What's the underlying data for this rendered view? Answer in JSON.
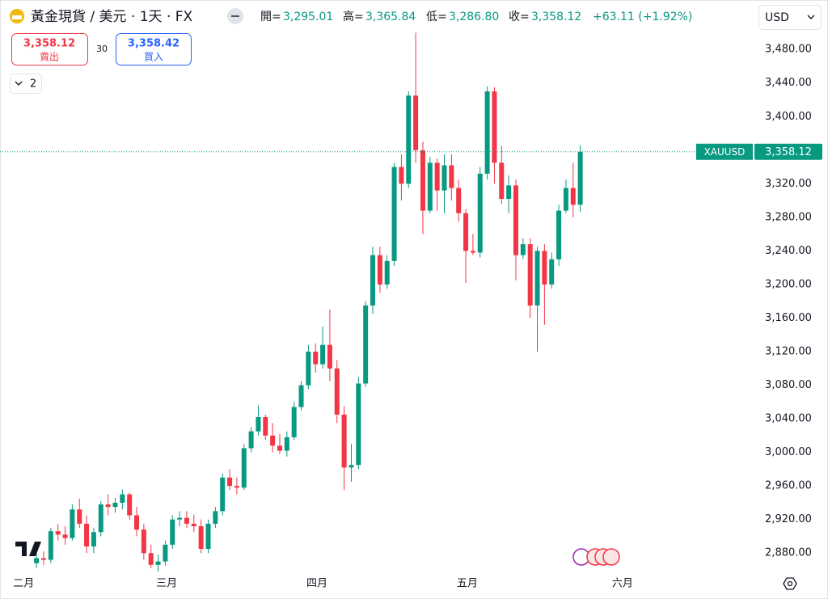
{
  "header": {
    "title": "黃金現貨 / 美元 · 1天 · FX",
    "quote": [
      {
        "label": "開=",
        "value": "3,295.01"
      },
      {
        "label": "高=",
        "value": "3,365.84"
      },
      {
        "label": "低=",
        "value": "3,286.80"
      },
      {
        "label": "收=",
        "value": "3,358.12"
      }
    ],
    "change": "+63.11 (+1.92%)",
    "currency": "USD"
  },
  "trade": {
    "sell_price": "3,358.12",
    "sell_label": "賣出",
    "spread": "30",
    "buy_price": "3,358.42",
    "buy_label": "買入"
  },
  "indicators": {
    "count": "2"
  },
  "chart_data": {
    "type": "candlestick",
    "series": [
      {
        "name": "XAUUSD",
        "up_color": "#089981",
        "down_color": "#f23645",
        "open": [
          2868,
          2874,
          2872,
          2906,
          2902,
          2898,
          2932,
          2915,
          2888,
          2905,
          2938,
          2935,
          2940,
          2950,
          2925,
          2908,
          2880,
          2866,
          2870,
          2890,
          2920,
          2922,
          2915,
          2912,
          2885,
          2915,
          2930,
          2970,
          2960,
          2958,
          3005,
          3025,
          3042,
          3020,
          3008,
          3002,
          3018,
          3054,
          3080,
          3120,
          3105,
          3128,
          3100,
          3045,
          2982,
          2985,
          3082,
          3175,
          3235,
          3200,
          3228,
          3340,
          3320,
          3425,
          3360,
          3288,
          3345,
          3312,
          3342,
          3315,
          3285,
          3240,
          3238,
          3332,
          3430,
          3345,
          3302,
          3318,
          3235,
          3248,
          3175,
          3240,
          3200,
          3230,
          3288,
          3315,
          3295.01
        ],
        "high": [
          2880,
          2882,
          2910,
          2915,
          2912,
          2938,
          2945,
          2925,
          2910,
          2942,
          2950,
          2946,
          2956,
          2952,
          2935,
          2915,
          2890,
          2878,
          2895,
          2925,
          2930,
          2930,
          2926,
          2920,
          2920,
          2935,
          2975,
          2980,
          2970,
          3010,
          3030,
          3056,
          3045,
          3035,
          3022,
          3025,
          3060,
          3085,
          3128,
          3130,
          3150,
          3170,
          3110,
          3055,
          3010,
          3090,
          3180,
          3245,
          3245,
          3235,
          3345,
          3355,
          3430,
          3500,
          3370,
          3352,
          3350,
          3355,
          3355,
          3325,
          3290,
          3260,
          3340,
          3436,
          3435,
          3365,
          3330,
          3325,
          3255,
          3255,
          3245,
          3248,
          3238,
          3295,
          3325,
          3345,
          3365.84
        ],
        "low": [
          2862,
          2866,
          2868,
          2895,
          2890,
          2895,
          2910,
          2880,
          2880,
          2900,
          2925,
          2928,
          2932,
          2920,
          2900,
          2872,
          2862,
          2858,
          2865,
          2885,
          2912,
          2910,
          2905,
          2880,
          2880,
          2910,
          2925,
          2955,
          2950,
          2955,
          3000,
          3020,
          3015,
          3000,
          2998,
          2995,
          3015,
          3050,
          3075,
          3095,
          3100,
          3085,
          3035,
          2955,
          2965,
          2980,
          3078,
          3165,
          3190,
          3195,
          3222,
          3300,
          3315,
          3345,
          3260,
          3285,
          3288,
          3285,
          3300,
          3275,
          3202,
          3235,
          3232,
          3325,
          3320,
          3296,
          3285,
          3205,
          3230,
          3160,
          3120,
          3152,
          3195,
          3222,
          3285,
          3280,
          3286.8
        ],
        "close": [
          2874,
          2872,
          2906,
          2902,
          2898,
          2932,
          2915,
          2888,
          2905,
          2938,
          2935,
          2940,
          2950,
          2925,
          2908,
          2880,
          2866,
          2870,
          2890,
          2920,
          2922,
          2915,
          2912,
          2885,
          2915,
          2930,
          2970,
          2960,
          2958,
          3005,
          3025,
          3042,
          3020,
          3008,
          3002,
          3018,
          3054,
          3080,
          3120,
          3105,
          3128,
          3100,
          3045,
          2982,
          2985,
          3082,
          3175,
          3235,
          3200,
          3228,
          3340,
          3320,
          3425,
          3360,
          3288,
          3345,
          3312,
          3342,
          3315,
          3285,
          3240,
          3238,
          3332,
          3430,
          3345,
          3302,
          3318,
          3235,
          3248,
          3175,
          3240,
          3200,
          3230,
          3288,
          3315,
          3295,
          3358.12
        ]
      }
    ],
    "last_price": {
      "value": 3358.12,
      "label": "3,358.12"
    },
    "ylim": [
      2860,
      3500.4
    ],
    "yticks": [
      {
        "value": 2880,
        "label": "2,880.00"
      },
      {
        "value": 2920,
        "label": "2,920.00"
      },
      {
        "value": 2960,
        "label": "2,960.00"
      },
      {
        "value": 3000,
        "label": "3,000.00"
      },
      {
        "value": 3040,
        "label": "3,040.00"
      },
      {
        "value": 3080,
        "label": "3,080.00"
      },
      {
        "value": 3120,
        "label": "3,120.00"
      },
      {
        "value": 3160,
        "label": "3,160.00"
      },
      {
        "value": 3200,
        "label": "3,200.00"
      },
      {
        "value": 3240,
        "label": "3,240.00"
      },
      {
        "value": 3280,
        "label": "3,280.00"
      },
      {
        "value": 3320,
        "label": "3,320.00"
      },
      {
        "value": 3360,
        "label": "3,360.00"
      },
      {
        "value": 3400,
        "label": "3,400.00"
      },
      {
        "value": 3440,
        "label": "3,440.00"
      },
      {
        "value": 3480,
        "label": "3,480.00"
      }
    ],
    "xlim": [
      -5.1,
      100
    ],
    "xticks": [
      {
        "value": -1.8,
        "label": "二月"
      },
      {
        "value": 18.2,
        "label": "三月"
      },
      {
        "value": 39.2,
        "label": "四月"
      },
      {
        "value": 60.2,
        "label": "五月"
      },
      {
        "value": 81.9,
        "label": "六月"
      }
    ]
  }
}
